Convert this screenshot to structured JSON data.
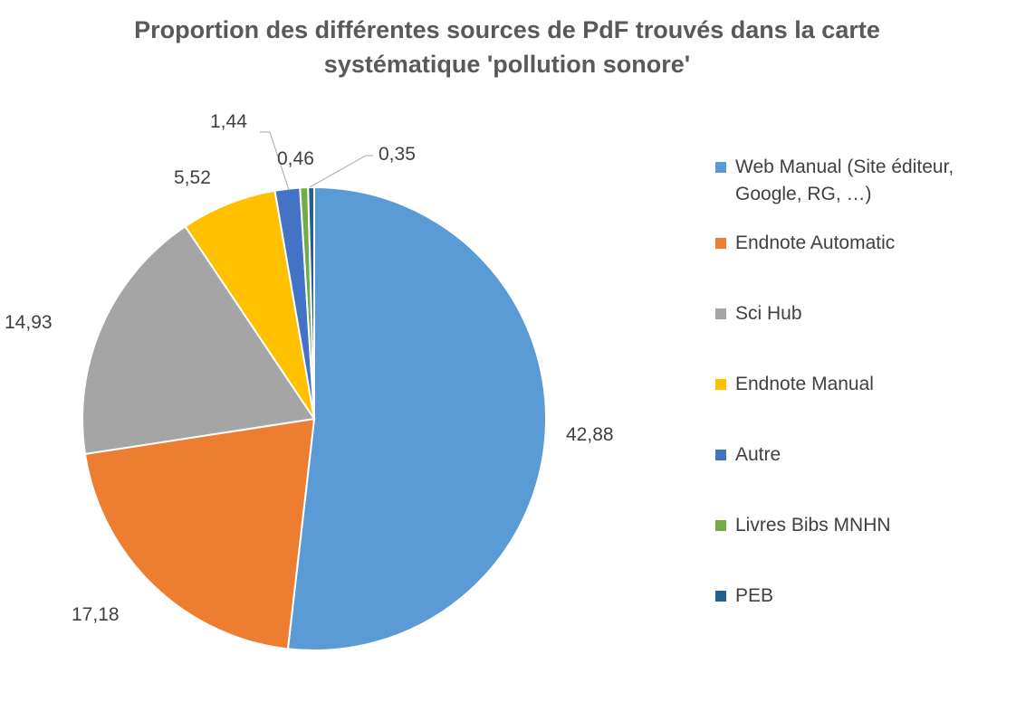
{
  "chart_data": {
    "type": "pie",
    "title": "Proportion des différentes sources de PdF trouvés dans la carte systématique 'pollution sonore'",
    "categories": [
      "Web Manual (Site éditeur, Google, RG, …)",
      "Endnote Automatic",
      "Sci Hub",
      "Endnote Manual",
      "Autre",
      "Livres Bibs MNHN",
      "PEB"
    ],
    "values": [
      42.88,
      17.18,
      14.93,
      5.52,
      1.44,
      0.46,
      0.35
    ],
    "data_labels": [
      "42,88",
      "17,18",
      "14,93",
      "5,52",
      "1,44",
      "0,46",
      "0,35"
    ],
    "colors": [
      "#5B9BD5",
      "#ED7D31",
      "#A5A5A5",
      "#FFC000",
      "#4472C4",
      "#70AD47",
      "#255E91"
    ],
    "start_angle": "12 o'clock",
    "direction": "clockwise",
    "legend_position": "right"
  }
}
